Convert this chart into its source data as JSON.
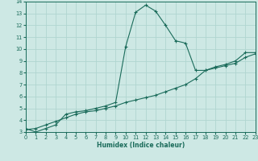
{
  "xlabel": "Humidex (Indice chaleur)",
  "bg_color": "#cde8e4",
  "grid_color": "#b0d5d0",
  "line_color": "#1a6b5a",
  "x_min": 0,
  "x_max": 23,
  "y_min": 3,
  "y_max": 14,
  "x_ticks": [
    0,
    1,
    2,
    3,
    4,
    5,
    6,
    7,
    8,
    9,
    10,
    11,
    12,
    13,
    14,
    15,
    16,
    17,
    18,
    19,
    20,
    21,
    22,
    23
  ],
  "y_ticks": [
    3,
    4,
    5,
    6,
    7,
    8,
    9,
    10,
    11,
    12,
    13,
    14
  ],
  "curve1_x": [
    0,
    1,
    2,
    3,
    4,
    5,
    6,
    7,
    8,
    9,
    10,
    11,
    12,
    13,
    14,
    15,
    16,
    17,
    18,
    19,
    20,
    21,
    22,
    23
  ],
  "curve1_y": [
    3.3,
    3.0,
    3.3,
    3.6,
    4.5,
    4.7,
    4.8,
    5.0,
    5.2,
    5.5,
    10.2,
    13.1,
    13.7,
    13.2,
    12.0,
    10.7,
    10.5,
    8.2,
    8.2,
    8.5,
    8.7,
    9.0,
    9.7,
    9.7
  ],
  "curve2_x": [
    0,
    1,
    2,
    3,
    4,
    5,
    6,
    7,
    8,
    9,
    10,
    11,
    12,
    13,
    14,
    15,
    16,
    17,
    18,
    19,
    20,
    21,
    22,
    23
  ],
  "curve2_y": [
    3.2,
    3.3,
    3.6,
    3.9,
    4.2,
    4.5,
    4.7,
    4.8,
    5.0,
    5.2,
    5.5,
    5.7,
    5.9,
    6.1,
    6.4,
    6.7,
    7.0,
    7.5,
    8.2,
    8.4,
    8.6,
    8.8,
    9.3,
    9.6
  ]
}
